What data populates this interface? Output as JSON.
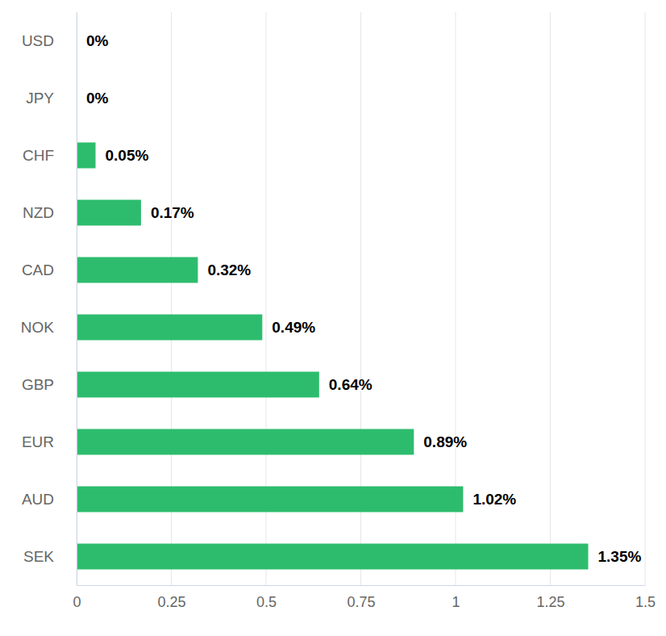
{
  "chart_data": {
    "type": "bar",
    "orientation": "horizontal",
    "categories": [
      "USD",
      "JPY",
      "CHF",
      "NZD",
      "CAD",
      "NOK",
      "GBP",
      "EUR",
      "AUD",
      "SEK"
    ],
    "values": [
      0,
      0,
      0.05,
      0.17,
      0.32,
      0.49,
      0.64,
      0.89,
      1.02,
      1.35
    ],
    "value_labels": [
      "0%",
      "0%",
      "0.05%",
      "0.17%",
      "0.32%",
      "0.49%",
      "0.64%",
      "0.89%",
      "1.02%",
      "1.35%"
    ],
    "color": "#2dbc6e",
    "xlim": [
      0,
      1.5
    ],
    "xticks": [
      0,
      0.25,
      0.5,
      0.75,
      1,
      1.25,
      1.5
    ],
    "grid": true,
    "data_labels": true
  }
}
